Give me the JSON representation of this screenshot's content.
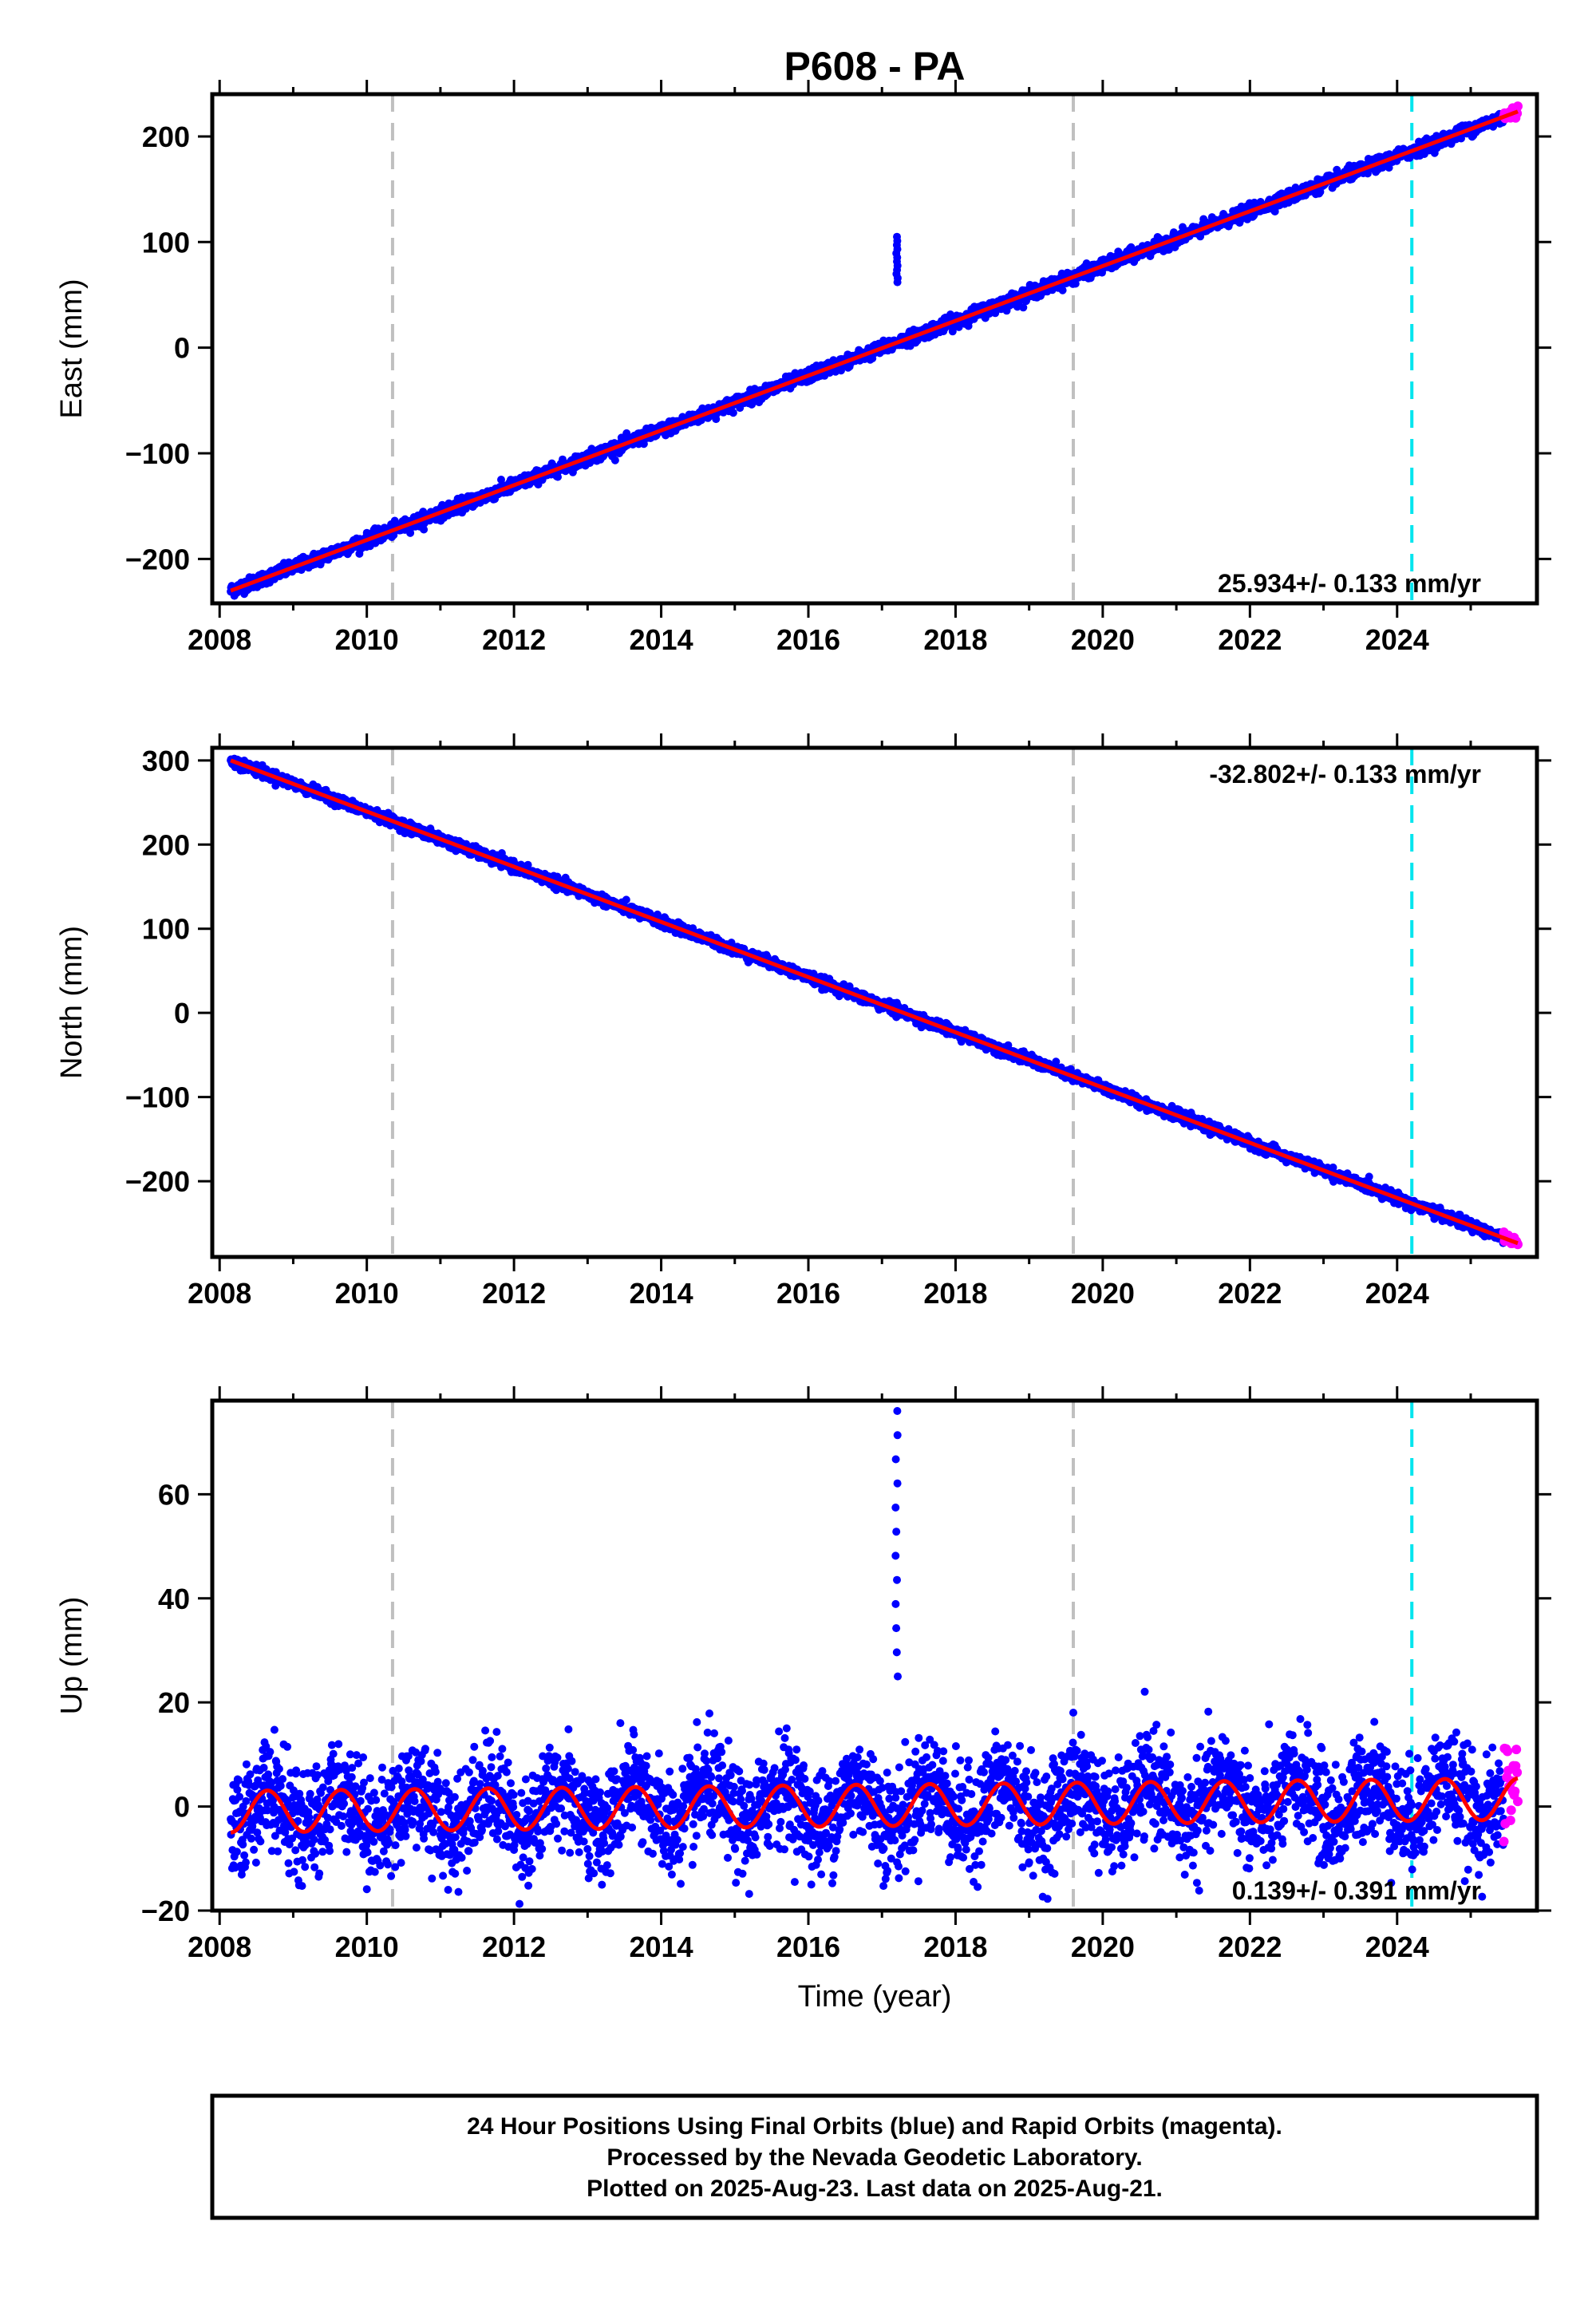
{
  "title": "P608 - PA",
  "colors": {
    "final_orbits": "#0000ff",
    "rapid_orbits": "#ff00ff",
    "model_fit": "#ff0000",
    "equipment_change": "#c0c0c0",
    "event_marker": "#00e5ee"
  },
  "chart_data": [
    {
      "type": "scatter",
      "ylabel": "East (mm)",
      "xlabel": "",
      "xlim": [
        2007.9,
        2025.9
      ],
      "ylim": [
        -242,
        240
      ],
      "x_ticks": [
        "2008",
        "2010",
        "2012",
        "2014",
        "2016",
        "2018",
        "2020",
        "2022",
        "2024"
      ],
      "y_ticks": [
        "200",
        "100",
        "0",
        "−100",
        "−200"
      ],
      "y_tick_values": [
        200,
        100,
        0,
        -100,
        -200
      ],
      "rate_label": "25.934+/- 0.133 mm/yr",
      "rate_position": "bottom-right",
      "trend": {
        "x0": 2008.15,
        "y0": -230,
        "rate": 25.934
      },
      "outliers": {
        "x": 2017.2,
        "y_min": 62,
        "y_max": 105
      },
      "noise_mm": 3,
      "rapid_points": {
        "x_start": 2025.45,
        "x_end": 2025.64
      },
      "vertical_lines": {
        "gray": [
          2010.35,
          2019.6
        ],
        "cyan": [
          2024.2
        ]
      }
    },
    {
      "type": "scatter",
      "ylabel": "North (mm)",
      "xlabel": "",
      "xlim": [
        2007.9,
        2025.9
      ],
      "ylim": [
        -290,
        315
      ],
      "x_ticks": [
        "2008",
        "2010",
        "2012",
        "2014",
        "2016",
        "2018",
        "2020",
        "2022",
        "2024"
      ],
      "y_ticks": [
        "300",
        "200",
        "100",
        "0",
        "−100",
        "−200"
      ],
      "y_tick_values": [
        300,
        200,
        100,
        0,
        -100,
        -200
      ],
      "rate_label": "-32.802+/- 0.133 mm/yr",
      "rate_position": "top-right",
      "trend": {
        "x0": 2008.15,
        "y0": 300,
        "rate": -32.802
      },
      "outliers": {
        "x": 2017.2,
        "y_min": -5,
        "y_max": 12
      },
      "noise_mm": 3,
      "rapid_points": {
        "x_start": 2025.45,
        "x_end": 2025.64
      },
      "vertical_lines": {
        "gray": [
          2010.35,
          2019.6
        ],
        "cyan": [
          2024.2
        ]
      }
    },
    {
      "type": "scatter",
      "ylabel": "Up (mm)",
      "xlabel": "Time (year)",
      "xlim": [
        2007.9,
        2025.9
      ],
      "ylim": [
        -20,
        78
      ],
      "x_ticks": [
        "2008",
        "2010",
        "2012",
        "2014",
        "2016",
        "2018",
        "2020",
        "2022",
        "2024"
      ],
      "y_ticks": [
        "60",
        "40",
        "20",
        "0",
        "−20"
      ],
      "y_tick_values": [
        60,
        40,
        20,
        0,
        -20
      ],
      "rate_label": "0.139+/- 0.391 mm/yr",
      "rate_position": "bottom-right",
      "trend": {
        "x0": 2008.15,
        "y0": -1,
        "rate": 0.139,
        "seasonal_amplitude": 4
      },
      "outliers": {
        "x": 2017.2,
        "y_min": 25,
        "y_max": 76
      },
      "noise_mm": 5,
      "rapid_points": {
        "x_start": 2025.45,
        "x_end": 2025.64
      },
      "vertical_lines": {
        "gray": [
          2010.35,
          2019.6
        ],
        "cyan": [
          2024.2
        ]
      }
    }
  ],
  "footer": {
    "line1": "24 Hour Positions Using Final Orbits (blue) and Rapid Orbits (magenta).",
    "line2": "Processed by the Nevada Geodetic Laboratory.",
    "line3": "Plotted on 2025-Aug-23. Last data on 2025-Aug-21."
  }
}
